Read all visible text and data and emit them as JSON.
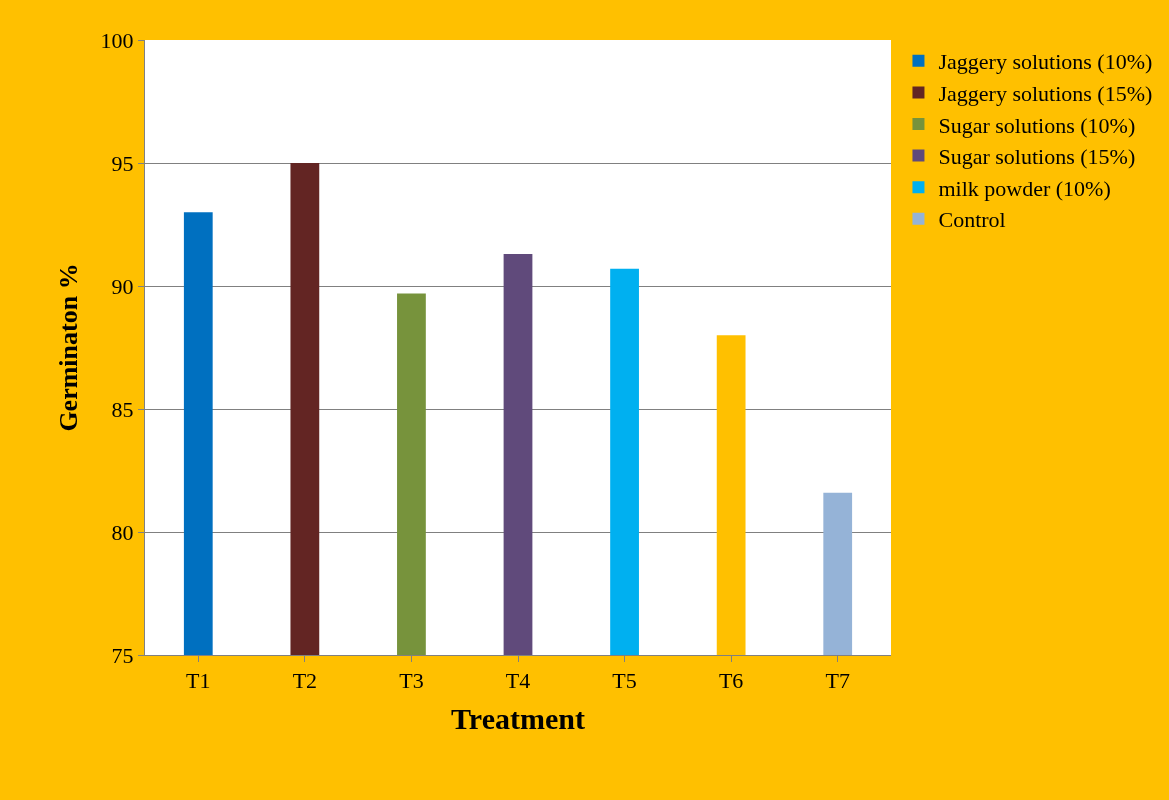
{
  "chart_data": {
    "type": "bar",
    "xlabel": "Treatment",
    "ylabel": "Germinaton %",
    "categories": [
      "T1",
      "T2",
      "T3",
      "T4",
      "T5",
      "T6",
      "T7"
    ],
    "series": [
      {
        "name": "Jaggery solutions (10%)",
        "color": "#0070c0",
        "values": [
          93,
          null,
          null,
          null,
          null,
          null,
          null
        ]
      },
      {
        "name": "Jaggery solutions (15%)",
        "color": "#632523",
        "values": [
          null,
          95,
          null,
          null,
          null,
          null,
          null
        ]
      },
      {
        "name": "Sugar solutions (10%)",
        "color": "#77933c",
        "values": [
          null,
          null,
          89.7,
          null,
          null,
          null,
          null
        ]
      },
      {
        "name": "Sugar solutions (15%)",
        "color": "#604a7b",
        "values": [
          null,
          null,
          null,
          91.3,
          null,
          null,
          null
        ]
      },
      {
        "name": "milk powder (10%)",
        "color": "#00b0f0",
        "values": [
          null,
          null,
          null,
          null,
          90.7,
          null,
          null
        ]
      },
      {
        "color": "#ffc000",
        "values": [
          null,
          null,
          null,
          null,
          null,
          88,
          null
        ]
      },
      {
        "name": "Control",
        "color": "#95b3d7",
        "values": [
          null,
          null,
          null,
          null,
          null,
          null,
          81.6
        ]
      }
    ],
    "ylim": [
      75,
      100
    ],
    "yticks": [
      75,
      80,
      85,
      90,
      95,
      100
    ],
    "grid": "y",
    "legend": "right"
  }
}
